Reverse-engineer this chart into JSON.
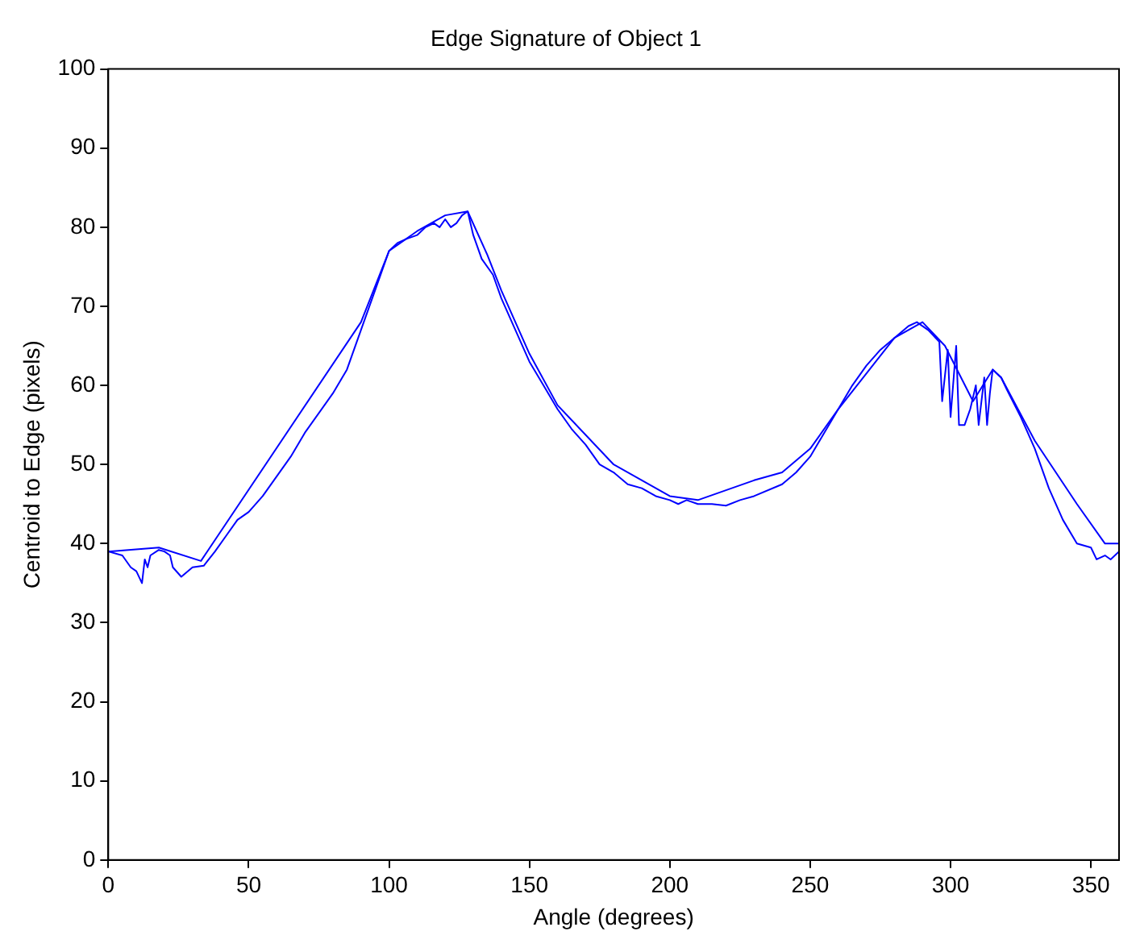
{
  "chart_data": {
    "type": "line",
    "title": "Edge Signature of Object 1",
    "xlabel": "Angle (degrees)",
    "ylabel": "Centroid to Edge (pixels)",
    "xlim": [
      0,
      360
    ],
    "xticks": [
      0,
      50,
      100,
      150,
      200,
      250,
      300,
      350
    ],
    "ylim": [
      0,
      100
    ],
    "yticks": [
      0,
      10,
      20,
      30,
      40,
      50,
      60,
      70,
      80,
      90,
      100
    ],
    "grid": false,
    "legend": false,
    "marker": "none",
    "line_style": "solid",
    "series": [
      {
        "color": "#0000ff",
        "x": [
          0,
          5,
          8,
          10,
          12,
          13,
          14,
          15,
          18,
          20,
          22,
          23,
          26,
          30,
          34,
          38,
          42,
          46,
          50,
          55,
          60,
          65,
          70,
          80,
          85,
          90,
          95,
          100,
          103,
          106,
          110,
          113,
          116,
          118,
          120,
          122,
          124,
          126,
          128,
          130,
          133,
          137,
          140,
          145,
          150,
          155,
          160,
          165,
          170,
          175,
          180,
          185,
          190,
          195,
          200,
          203,
          206,
          210,
          215,
          220,
          225,
          230,
          240,
          245,
          250,
          255,
          260,
          265,
          270,
          275,
          280,
          285,
          288,
          292,
          296,
          297,
          299,
          300,
          302,
          303,
          305,
          307,
          309,
          310,
          312,
          313,
          314,
          315,
          318,
          320,
          325,
          330,
          335,
          340,
          345,
          350,
          352,
          355,
          357,
          360
        ],
        "values": [
          39,
          38.5,
          37,
          36.5,
          35,
          38,
          37,
          38.5,
          39.2,
          39,
          38.5,
          37,
          35.8,
          37,
          37.2,
          39,
          41,
          43,
          44,
          46,
          48.5,
          51,
          54,
          59,
          62,
          67,
          72,
          77,
          78,
          78.5,
          79,
          80,
          80.5,
          80,
          81,
          80,
          80.5,
          81.5,
          82,
          79,
          76,
          74,
          71,
          67,
          63,
          60,
          57,
          54.5,
          52.5,
          50,
          49,
          47.5,
          47,
          46,
          45.5,
          45,
          45.5,
          45,
          45,
          44.8,
          45.5,
          46,
          47.5,
          49,
          51,
          54,
          57,
          60,
          62.5,
          64.5,
          66,
          67.5,
          68,
          67,
          65.5,
          58,
          64.5,
          56,
          65,
          55,
          55,
          57,
          60,
          55,
          61,
          55,
          59,
          62,
          61,
          59.5,
          56,
          52,
          47,
          43,
          40,
          39.5,
          38,
          38.5,
          38,
          39
        ]
      },
      {
        "color": "#0000ff",
        "x": [
          0,
          18,
          33,
          90,
          100,
          110,
          120,
          128,
          135,
          140,
          150,
          160,
          180,
          200,
          210,
          230,
          240,
          250,
          260,
          280,
          290,
          298,
          308,
          315,
          318,
          330,
          345,
          355,
          360
        ],
        "values": [
          39,
          39.5,
          37.8,
          68,
          77,
          79.5,
          81.5,
          82,
          76.5,
          72,
          64,
          57.5,
          50,
          46,
          45.5,
          48,
          49,
          52,
          57,
          66,
          68,
          65,
          58,
          62,
          61,
          53,
          45,
          40,
          40
        ]
      }
    ]
  }
}
